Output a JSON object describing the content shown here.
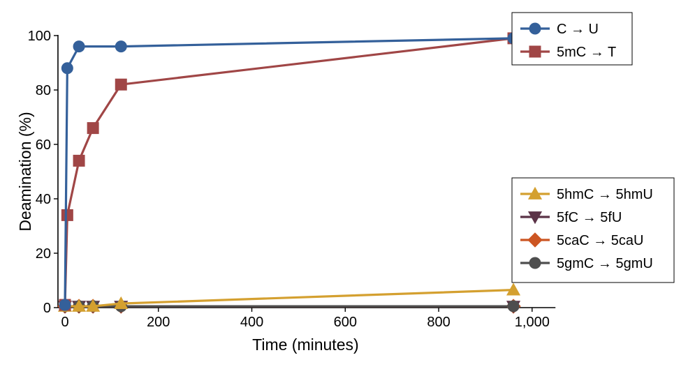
{
  "chart_data": {
    "type": "line",
    "xlabel": "Time (minutes)",
    "ylabel": "Deamination (%)",
    "xlim": [
      -15,
      1050
    ],
    "ylim": [
      0,
      100
    ],
    "xticks": [
      0,
      200,
      400,
      600,
      800,
      1000
    ],
    "xtick_labels": [
      "0",
      "200",
      "400",
      "600",
      "800",
      "1,000"
    ],
    "yticks": [
      0,
      20,
      40,
      60,
      80,
      100
    ],
    "ytick_labels": [
      "0",
      "20",
      "40",
      "60",
      "80",
      "100"
    ],
    "grid": false,
    "legend_groups": [
      {
        "placement": "top-right",
        "series": [
          0,
          1
        ]
      },
      {
        "placement": "center-right",
        "series": [
          2,
          3,
          4,
          5
        ]
      }
    ],
    "series": [
      {
        "name": "C → U",
        "color": "#34609a",
        "marker": "circle",
        "x": [
          0,
          5,
          30,
          120,
          960
        ],
        "y": [
          1,
          88,
          96,
          96,
          99
        ]
      },
      {
        "name": "5mC → T",
        "color": "#a04646",
        "marker": "square",
        "x": [
          0,
          5,
          30,
          60,
          120,
          960
        ],
        "y": [
          1,
          34,
          54,
          66,
          82,
          99
        ]
      },
      {
        "name": "5hmC → 5hmU",
        "color": "#d4a030",
        "marker": "triangle-up",
        "x": [
          0,
          30,
          60,
          120,
          960
        ],
        "y": [
          0.5,
          0.5,
          0.5,
          1.5,
          6.5
        ]
      },
      {
        "name": "5fC → 5fU",
        "color": "#5b3347",
        "marker": "triangle-down",
        "x": [
          0,
          30,
          60,
          120,
          960
        ],
        "y": [
          0.5,
          0.5,
          0.5,
          0.5,
          0.5
        ]
      },
      {
        "name": "5caC → 5caU",
        "color": "#cc5522",
        "marker": "diamond",
        "x": [
          0,
          30,
          60,
          120,
          960
        ],
        "y": [
          0.5,
          0.5,
          0.5,
          0.5,
          0.5
        ]
      },
      {
        "name": "5gmC → 5gmU",
        "color": "#4e4e4e",
        "marker": "circle",
        "x": [
          0,
          30,
          60,
          120,
          960
        ],
        "y": [
          0.5,
          0.5,
          0.5,
          0.5,
          0.5
        ]
      }
    ]
  }
}
